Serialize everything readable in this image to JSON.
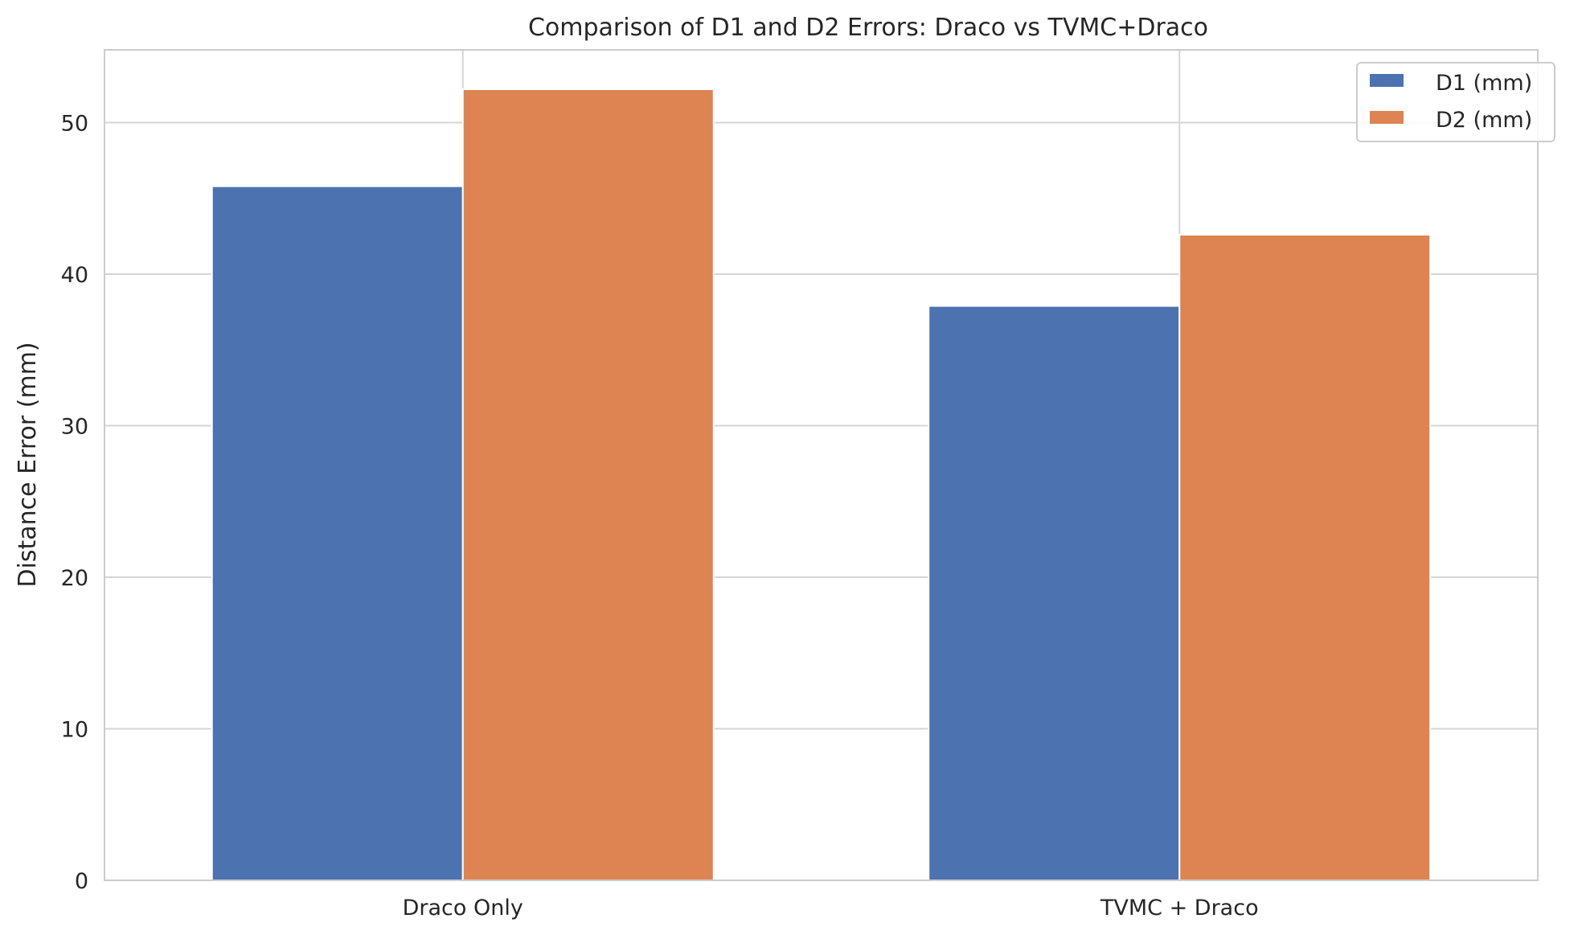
{
  "chart_data": {
    "type": "bar",
    "title": "Comparison of D1 and D2 Errors: Draco vs TVMC+Draco",
    "xlabel": "",
    "ylabel": "Distance Error (mm)",
    "categories": [
      "Draco Only",
      "TVMC + Draco"
    ],
    "series": [
      {
        "name": "D1 (mm)",
        "values": [
          45.8,
          37.9
        ],
        "color": "#4c72b0"
      },
      {
        "name": "D2 (mm)",
        "values": [
          52.2,
          42.6
        ],
        "color": "#dd8452"
      }
    ],
    "ylim": [
      0,
      54.8
    ],
    "yticks": [
      0,
      10,
      20,
      30,
      40,
      50
    ],
    "grid": true,
    "legend_position": "top-right"
  }
}
